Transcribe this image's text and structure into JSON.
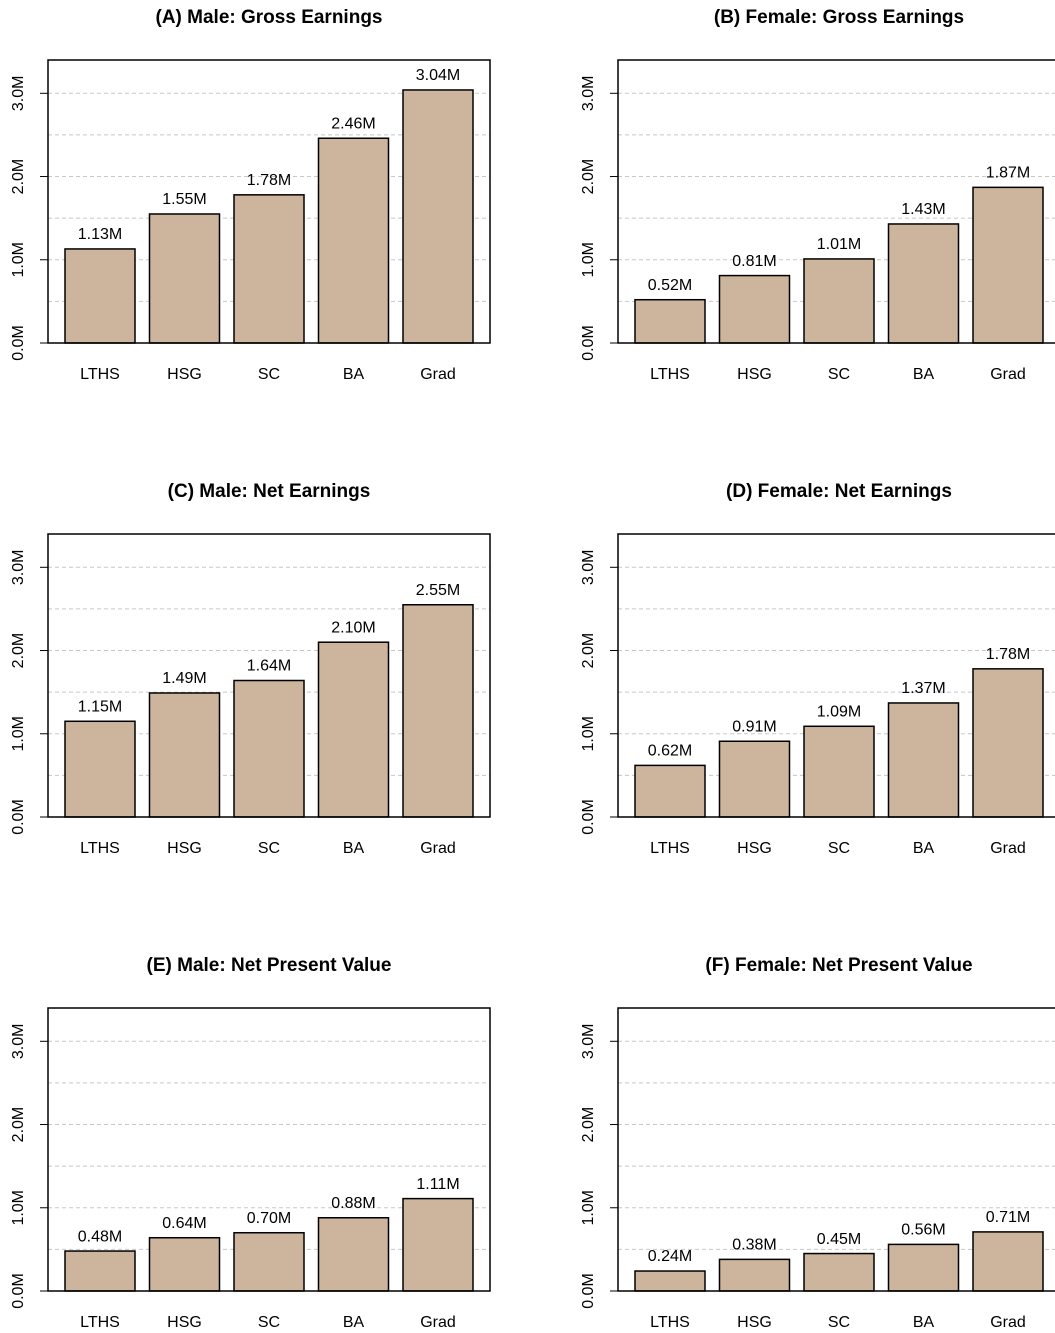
{
  "chart_data": [
    {
      "type": "bar",
      "title": "(A) Male: Gross Earnings",
      "categories": [
        "LTHS",
        "HSG",
        "SC",
        "BA",
        "Grad"
      ],
      "values": [
        1.13,
        1.55,
        1.78,
        2.46,
        3.04
      ],
      "value_labels": [
        "1.13M",
        "1.55M",
        "1.78M",
        "2.46M",
        "3.04M"
      ],
      "color": "#ccb59c",
      "ylim": [
        0,
        3.4
      ],
      "yticks": [
        {
          "value": 0,
          "label": "0.0M"
        },
        {
          "value": 1,
          "label": "1.0M"
        },
        {
          "value": 2,
          "label": "2.0M"
        },
        {
          "value": 3,
          "label": "3.0M"
        }
      ],
      "ygrid": [
        0.5,
        1,
        1.5,
        2,
        2.5,
        3
      ]
    },
    {
      "type": "bar",
      "title": "(B) Female: Gross Earnings",
      "categories": [
        "LTHS",
        "HSG",
        "SC",
        "BA",
        "Grad"
      ],
      "values": [
        0.52,
        0.81,
        1.01,
        1.43,
        1.87
      ],
      "value_labels": [
        "0.52M",
        "0.81M",
        "1.01M",
        "1.43M",
        "1.87M"
      ],
      "color": "#ccb59c",
      "ylim": [
        0,
        3.4
      ],
      "yticks": [
        {
          "value": 0,
          "label": "0.0M"
        },
        {
          "value": 1,
          "label": "1.0M"
        },
        {
          "value": 2,
          "label": "2.0M"
        },
        {
          "value": 3,
          "label": "3.0M"
        }
      ],
      "ygrid": [
        0.5,
        1,
        1.5,
        2,
        2.5,
        3
      ]
    },
    {
      "type": "bar",
      "title": "(C) Male: Net Earnings",
      "categories": [
        "LTHS",
        "HSG",
        "SC",
        "BA",
        "Grad"
      ],
      "values": [
        1.15,
        1.49,
        1.64,
        2.1,
        2.55
      ],
      "value_labels": [
        "1.15M",
        "1.49M",
        "1.64M",
        "2.10M",
        "2.55M"
      ],
      "color": "#ccb59c",
      "ylim": [
        0,
        3.4
      ],
      "yticks": [
        {
          "value": 0,
          "label": "0.0M"
        },
        {
          "value": 1,
          "label": "1.0M"
        },
        {
          "value": 2,
          "label": "2.0M"
        },
        {
          "value": 3,
          "label": "3.0M"
        }
      ],
      "ygrid": [
        0.5,
        1,
        1.5,
        2,
        2.5,
        3
      ]
    },
    {
      "type": "bar",
      "title": "(D) Female: Net Earnings",
      "categories": [
        "LTHS",
        "HSG",
        "SC",
        "BA",
        "Grad"
      ],
      "values": [
        0.62,
        0.91,
        1.09,
        1.37,
        1.78
      ],
      "value_labels": [
        "0.62M",
        "0.91M",
        "1.09M",
        "1.37M",
        "1.78M"
      ],
      "color": "#ccb59c",
      "ylim": [
        0,
        3.4
      ],
      "yticks": [
        {
          "value": 0,
          "label": "0.0M"
        },
        {
          "value": 1,
          "label": "1.0M"
        },
        {
          "value": 2,
          "label": "2.0M"
        },
        {
          "value": 3,
          "label": "3.0M"
        }
      ],
      "ygrid": [
        0.5,
        1,
        1.5,
        2,
        2.5,
        3
      ]
    },
    {
      "type": "bar",
      "title": "(E) Male: Net Present Value",
      "categories": [
        "LTHS",
        "HSG",
        "SC",
        "BA",
        "Grad"
      ],
      "values": [
        0.48,
        0.64,
        0.7,
        0.88,
        1.11
      ],
      "value_labels": [
        "0.48M",
        "0.64M",
        "0.70M",
        "0.88M",
        "1.11M"
      ],
      "color": "#ccb59c",
      "ylim": [
        0,
        3.4
      ],
      "yticks": [
        {
          "value": 0,
          "label": "0.0M"
        },
        {
          "value": 1,
          "label": "1.0M"
        },
        {
          "value": 2,
          "label": "2.0M"
        },
        {
          "value": 3,
          "label": "3.0M"
        }
      ],
      "ygrid": [
        0.5,
        1,
        1.5,
        2,
        2.5,
        3
      ]
    },
    {
      "type": "bar",
      "title": "(F) Female: Net Present Value",
      "categories": [
        "LTHS",
        "HSG",
        "SC",
        "BA",
        "Grad"
      ],
      "values": [
        0.24,
        0.38,
        0.45,
        0.56,
        0.71
      ],
      "value_labels": [
        "0.24M",
        "0.38M",
        "0.45M",
        "0.56M",
        "0.71M"
      ],
      "color": "#ccb59c",
      "ylim": [
        0,
        3.4
      ],
      "yticks": [
        {
          "value": 0,
          "label": "0.0M"
        },
        {
          "value": 1,
          "label": "1.0M"
        },
        {
          "value": 2,
          "label": "2.0M"
        },
        {
          "value": 3,
          "label": "3.0M"
        }
      ],
      "ygrid": [
        0.5,
        1,
        1.5,
        2,
        2.5,
        3
      ]
    }
  ]
}
